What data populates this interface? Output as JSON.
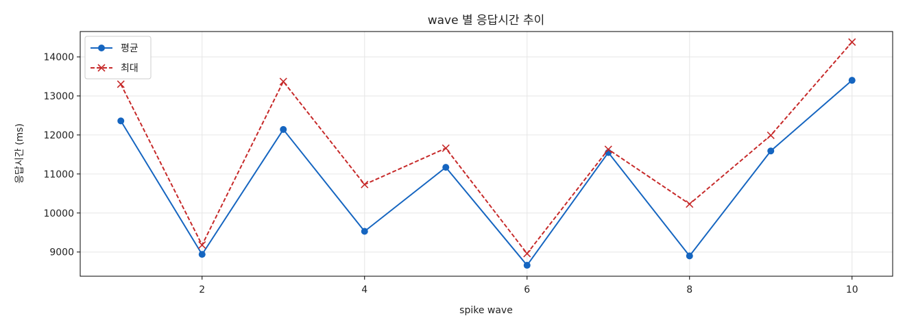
{
  "chart_data": {
    "type": "line",
    "title": "wave 별 응답시간 추이",
    "xlabel": "spike wave",
    "ylabel": "응답시간 (ms)",
    "x": [
      1,
      2,
      3,
      4,
      5,
      6,
      7,
      8,
      9,
      10
    ],
    "xlim": [
      0.5,
      10.5
    ],
    "ylim": [
      8380,
      14650
    ],
    "xticks": [
      2,
      4,
      6,
      8,
      10
    ],
    "yticks": [
      9000,
      10000,
      11000,
      12000,
      13000,
      14000
    ],
    "grid": true,
    "legend_position": "top-left",
    "series": [
      {
        "name": "평균",
        "color": "#1565c0",
        "style": "solid",
        "marker": "circle",
        "values": [
          12360,
          8940,
          12140,
          9530,
          11170,
          8660,
          11550,
          8900,
          11590,
          13400
        ]
      },
      {
        "name": "최대",
        "color": "#c62828",
        "style": "dashed",
        "marker": "x",
        "values": [
          13300,
          9180,
          13370,
          10730,
          11660,
          8960,
          11630,
          10230,
          11990,
          14380
        ]
      }
    ]
  }
}
